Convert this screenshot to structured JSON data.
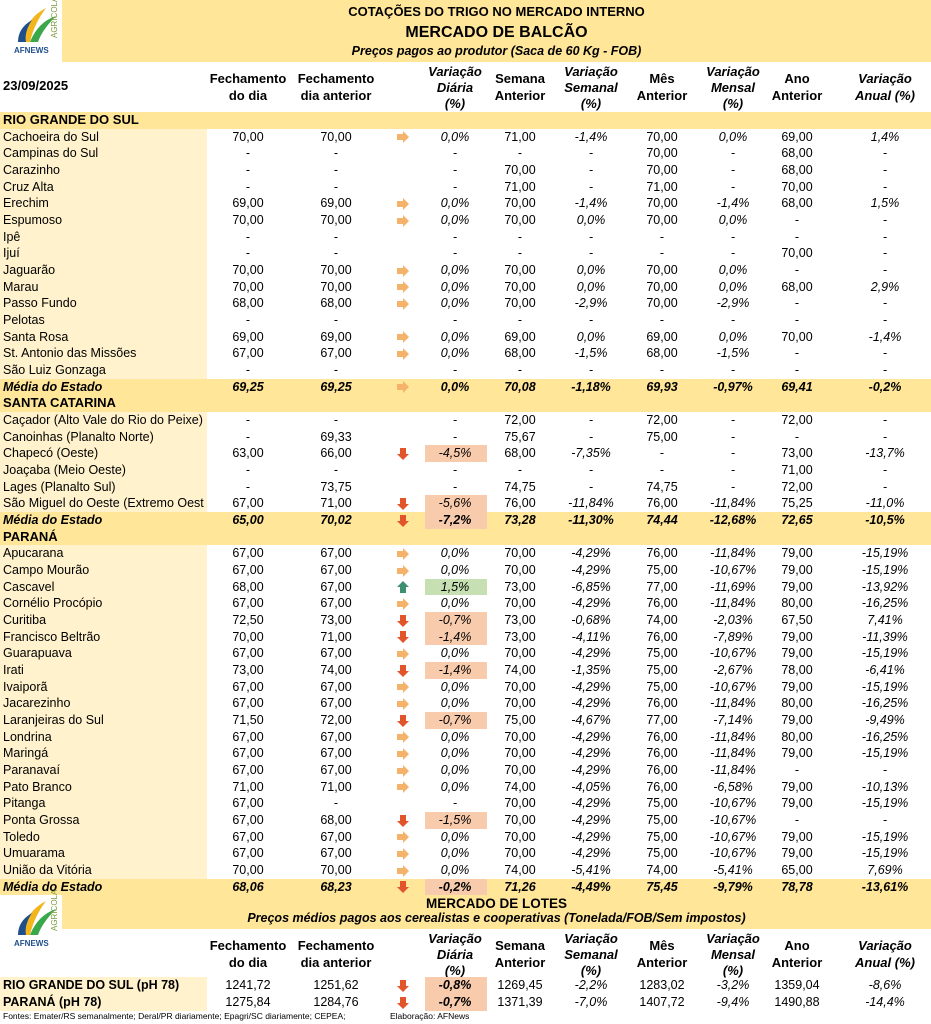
{
  "logo": {
    "name": "AFNEWS",
    "tag": "AGRÍCOLA"
  },
  "header": {
    "title": "COTAÇÕES DO TRIGO NO MERCADO INTERNO",
    "subtitle": "MERCADO DE BALCÃO",
    "note": "Preços pagos ao produtor (Saca de 60 Kg - FOB)"
  },
  "date": "23/09/2025",
  "columns": [
    [
      "Fechamento",
      "do dia"
    ],
    [
      "Fechamento",
      "dia anterior"
    ],
    [
      "Variação",
      "Diária",
      "(%)"
    ],
    [
      "Semana",
      "Anterior"
    ],
    [
      "Variação",
      "Semanal",
      "(%)"
    ],
    [
      "Mês",
      "Anterior"
    ],
    [
      "Variação",
      "Mensal",
      "(%)"
    ],
    [
      "Ano",
      "Anterior"
    ],
    [
      "Variação",
      "Anual (%)"
    ]
  ],
  "sections": [
    {
      "name": "RIO GRANDE DO SUL",
      "rows": [
        {
          "label": "Cachoeira do Sul",
          "cells": [
            "70,00",
            "70,00",
            "0,0%",
            "71,00",
            "-1,4%",
            "70,00",
            "0,0%",
            "69,00",
            "1,4%"
          ],
          "arrow": "right"
        },
        {
          "label": "Campinas do Sul",
          "cells": [
            "-",
            "-",
            "-",
            "-",
            "-",
            "70,00",
            "-",
            "68,00",
            "-"
          ]
        },
        {
          "label": "Carazinho",
          "cells": [
            "-",
            "-",
            "-",
            "70,00",
            "-",
            "70,00",
            "-",
            "68,00",
            "-"
          ]
        },
        {
          "label": "Cruz Alta",
          "cells": [
            "-",
            "-",
            "-",
            "71,00",
            "-",
            "71,00",
            "-",
            "70,00",
            "-"
          ]
        },
        {
          "label": "Erechim",
          "cells": [
            "69,00",
            "69,00",
            "0,0%",
            "70,00",
            "-1,4%",
            "70,00",
            "-1,4%",
            "68,00",
            "1,5%"
          ],
          "arrow": "right"
        },
        {
          "label": "Espumoso",
          "cells": [
            "70,00",
            "70,00",
            "0,0%",
            "70,00",
            "0,0%",
            "70,00",
            "0,0%",
            "-",
            "-"
          ],
          "arrow": "right"
        },
        {
          "label": "Ipê",
          "cells": [
            "-",
            "-",
            "-",
            "-",
            "-",
            "-",
            "-",
            "-",
            "-"
          ]
        },
        {
          "label": "Ijuí",
          "cells": [
            "-",
            "-",
            "-",
            "-",
            "-",
            "-",
            "-",
            "70,00",
            "-"
          ]
        },
        {
          "label": "Jaguarão",
          "cells": [
            "70,00",
            "70,00",
            "0,0%",
            "70,00",
            "0,0%",
            "70,00",
            "0,0%",
            "-",
            "-"
          ],
          "arrow": "right"
        },
        {
          "label": "Marau",
          "cells": [
            "70,00",
            "70,00",
            "0,0%",
            "70,00",
            "0,0%",
            "70,00",
            "0,0%",
            "68,00",
            "2,9%"
          ],
          "arrow": "right"
        },
        {
          "label": "Passo Fundo",
          "cells": [
            "68,00",
            "68,00",
            "0,0%",
            "70,00",
            "-2,9%",
            "70,00",
            "-2,9%",
            "-",
            "-"
          ],
          "arrow": "right"
        },
        {
          "label": "Pelotas",
          "cells": [
            "-",
            "-",
            "-",
            "-",
            "-",
            "-",
            "-",
            "-",
            "-"
          ]
        },
        {
          "label": "Santa Rosa",
          "cells": [
            "69,00",
            "69,00",
            "0,0%",
            "69,00",
            "0,0%",
            "69,00",
            "0,0%",
            "70,00",
            "-1,4%"
          ],
          "arrow": "right"
        },
        {
          "label": "St. Antonio das Missões",
          "cells": [
            "67,00",
            "67,00",
            "0,0%",
            "68,00",
            "-1,5%",
            "68,00",
            "-1,5%",
            "-",
            "-"
          ],
          "arrow": "right"
        },
        {
          "label": "São Luiz Gonzaga",
          "cells": [
            "-",
            "-",
            "-",
            "-",
            "-",
            "-",
            "-",
            "-",
            "-"
          ]
        }
      ],
      "average": {
        "label": "Média do Estado",
        "cells": [
          "69,25",
          "69,25",
          "0,0%",
          "70,08",
          "-1,18%",
          "69,93",
          "-0,97%",
          "69,41",
          "-0,2%"
        ],
        "arrow": "right"
      }
    },
    {
      "name": "SANTA CATARINA",
      "rows": [
        {
          "label": "Caçador (Alto Vale do Rio do Peixe)",
          "cells": [
            "-",
            "-",
            "-",
            "72,00",
            "-",
            "72,00",
            "-",
            "72,00",
            "-"
          ]
        },
        {
          "label": "Canoinhas (Planalto Norte)",
          "cells": [
            "-",
            "69,33",
            "-",
            "75,67",
            "-",
            "75,00",
            "-",
            "-",
            "-"
          ]
        },
        {
          "label": "Chapecó (Oeste)",
          "cells": [
            "63,00",
            "66,00",
            "-4,5%",
            "68,00",
            "-7,35%",
            "-",
            "-",
            "73,00",
            "-13,7%"
          ],
          "arrow": "down"
        },
        {
          "label": "Joaçaba (Meio Oeste)",
          "cells": [
            "-",
            "-",
            "-",
            "-",
            "-",
            "-",
            "-",
            "71,00",
            "-"
          ]
        },
        {
          "label": "Lages (Planalto Sul)",
          "cells": [
            "-",
            "73,75",
            "-",
            "74,75",
            "-",
            "74,75",
            "-",
            "72,00",
            "-"
          ]
        },
        {
          "label": "São Miguel do Oeste (Extremo Oest",
          "cells": [
            "67,00",
            "71,00",
            "-5,6%",
            "76,00",
            "-11,84%",
            "76,00",
            "-11,84%",
            "75,25",
            "-11,0%"
          ],
          "arrow": "down"
        }
      ],
      "average": {
        "label": "Média do Estado",
        "cells": [
          "65,00",
          "70,02",
          "-7,2%",
          "73,28",
          "-11,30%",
          "74,44",
          "-12,68%",
          "72,65",
          "-10,5%"
        ],
        "arrow": "down"
      }
    },
    {
      "name": "PARANÁ",
      "rows": [
        {
          "label": "Apucarana",
          "cells": [
            "67,00",
            "67,00",
            "0,0%",
            "70,00",
            "-4,29%",
            "76,00",
            "-11,84%",
            "79,00",
            "-15,19%"
          ],
          "arrow": "right"
        },
        {
          "label": "Campo Mourão",
          "cells": [
            "67,00",
            "67,00",
            "0,0%",
            "70,00",
            "-4,29%",
            "75,00",
            "-10,67%",
            "79,00",
            "-15,19%"
          ],
          "arrow": "right"
        },
        {
          "label": "Cascavel",
          "cells": [
            "68,00",
            "67,00",
            "1,5%",
            "73,00",
            "-6,85%",
            "77,00",
            "-11,69%",
            "79,00",
            "-13,92%"
          ],
          "arrow": "up"
        },
        {
          "label": "Cornélio Procópio",
          "cells": [
            "67,00",
            "67,00",
            "0,0%",
            "70,00",
            "-4,29%",
            "76,00",
            "-11,84%",
            "80,00",
            "-16,25%"
          ],
          "arrow": "right"
        },
        {
          "label": "Curitiba",
          "cells": [
            "72,50",
            "73,00",
            "-0,7%",
            "73,00",
            "-0,68%",
            "74,00",
            "-2,03%",
            "67,50",
            "7,41%"
          ],
          "arrow": "down"
        },
        {
          "label": "Francisco Beltrão",
          "cells": [
            "70,00",
            "71,00",
            "-1,4%",
            "73,00",
            "-4,11%",
            "76,00",
            "-7,89%",
            "79,00",
            "-11,39%"
          ],
          "arrow": "down"
        },
        {
          "label": "Guarapuava",
          "cells": [
            "67,00",
            "67,00",
            "0,0%",
            "70,00",
            "-4,29%",
            "75,00",
            "-10,67%",
            "79,00",
            "-15,19%"
          ],
          "arrow": "right"
        },
        {
          "label": "Irati",
          "cells": [
            "73,00",
            "74,00",
            "-1,4%",
            "74,00",
            "-1,35%",
            "75,00",
            "-2,67%",
            "78,00",
            "-6,41%"
          ],
          "arrow": "down"
        },
        {
          "label": "Ivaiporã",
          "cells": [
            "67,00",
            "67,00",
            "0,0%",
            "70,00",
            "-4,29%",
            "75,00",
            "-10,67%",
            "79,00",
            "-15,19%"
          ],
          "arrow": "right"
        },
        {
          "label": "Jacarezinho",
          "cells": [
            "67,00",
            "67,00",
            "0,0%",
            "70,00",
            "-4,29%",
            "76,00",
            "-11,84%",
            "80,00",
            "-16,25%"
          ],
          "arrow": "right"
        },
        {
          "label": "Laranjeiras do Sul",
          "cells": [
            "71,50",
            "72,00",
            "-0,7%",
            "75,00",
            "-4,67%",
            "77,00",
            "-7,14%",
            "79,00",
            "-9,49%"
          ],
          "arrow": "down"
        },
        {
          "label": "Londrina",
          "cells": [
            "67,00",
            "67,00",
            "0,0%",
            "70,00",
            "-4,29%",
            "76,00",
            "-11,84%",
            "80,00",
            "-16,25%"
          ],
          "arrow": "right"
        },
        {
          "label": "Maringá",
          "cells": [
            "67,00",
            "67,00",
            "0,0%",
            "70,00",
            "-4,29%",
            "76,00",
            "-11,84%",
            "79,00",
            "-15,19%"
          ],
          "arrow": "right"
        },
        {
          "label": "Paranavaí",
          "cells": [
            "67,00",
            "67,00",
            "0,0%",
            "70,00",
            "-4,29%",
            "76,00",
            "-11,84%",
            "-",
            "-"
          ],
          "arrow": "right"
        },
        {
          "label": "Pato Branco",
          "cells": [
            "71,00",
            "71,00",
            "0,0%",
            "74,00",
            "-4,05%",
            "76,00",
            "-6,58%",
            "79,00",
            "-10,13%"
          ],
          "arrow": "right"
        },
        {
          "label": "Pitanga",
          "cells": [
            "67,00",
            "-",
            "-",
            "70,00",
            "-4,29%",
            "75,00",
            "-10,67%",
            "79,00",
            "-15,19%"
          ]
        },
        {
          "label": "Ponta Grossa",
          "cells": [
            "67,00",
            "68,00",
            "-1,5%",
            "70,00",
            "-4,29%",
            "75,00",
            "-10,67%",
            "-",
            "-"
          ],
          "arrow": "down"
        },
        {
          "label": "Toledo",
          "cells": [
            "67,00",
            "67,00",
            "0,0%",
            "70,00",
            "-4,29%",
            "75,00",
            "-10,67%",
            "79,00",
            "-15,19%"
          ],
          "arrow": "right"
        },
        {
          "label": "Umuarama",
          "cells": [
            "67,00",
            "67,00",
            "0,0%",
            "70,00",
            "-4,29%",
            "75,00",
            "-10,67%",
            "79,00",
            "-15,19%"
          ],
          "arrow": "right"
        },
        {
          "label": "União da Vitória",
          "cells": [
            "70,00",
            "70,00",
            "0,0%",
            "74,00",
            "-5,41%",
            "74,00",
            "-5,41%",
            "65,00",
            "7,69%"
          ],
          "arrow": "right"
        }
      ],
      "average": {
        "label": "Média do Estado",
        "cells": [
          "68,06",
          "68,23",
          "-0,2%",
          "71,26",
          "-4,49%",
          "75,45",
          "-9,79%",
          "78,78",
          "-13,61%"
        ],
        "arrow": "down"
      }
    }
  ],
  "lots": {
    "title": "MERCADO DE LOTES",
    "note": "Preços médios pagos aos cerealistas e cooperativas (Tonelada/FOB/Sem impostos)",
    "rows": [
      {
        "label": "RIO GRANDE DO SUL (pH 78)",
        "cells": [
          "1241,72",
          "1251,62",
          "-0,8%",
          "1269,45",
          "-2,2%",
          "1283,02",
          "-3,2%",
          "1359,04",
          "-8,6%"
        ],
        "arrow": "down"
      },
      {
        "label": "PARANÁ (pH 78)",
        "cells": [
          "1275,84",
          "1284,76",
          "-0,7%",
          "1371,39",
          "-7,0%",
          "1407,72",
          "-9,4%",
          "1490,88",
          "-14,4%"
        ],
        "arrow": "down"
      }
    ]
  },
  "footer": {
    "sources": "Fontes: Emater/RS semanalmente; Deral/PR diariamente; Epagri/SC diariamente; CEPEA;",
    "credit": "Elaboração: AFNews"
  }
}
